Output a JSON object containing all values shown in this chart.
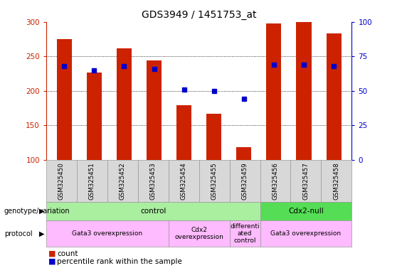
{
  "title": "GDS3949 / 1451753_at",
  "samples": [
    "GSM325450",
    "GSM325451",
    "GSM325452",
    "GSM325453",
    "GSM325454",
    "GSM325455",
    "GSM325459",
    "GSM325456",
    "GSM325457",
    "GSM325458"
  ],
  "count_values": [
    275,
    226,
    262,
    244,
    179,
    167,
    118,
    298,
    300,
    283
  ],
  "percentile_values": [
    68,
    65,
    68,
    66,
    51,
    50,
    44,
    69,
    69,
    68
  ],
  "ylim_left": [
    100,
    300
  ],
  "ylim_right": [
    0,
    100
  ],
  "yticks_left": [
    100,
    150,
    200,
    250,
    300
  ],
  "yticks_right": [
    0,
    25,
    50,
    75,
    100
  ],
  "bar_color": "#cc2200",
  "dot_color": "#0000cc",
  "bar_width": 0.5,
  "genotype_groups": [
    {
      "label": "control",
      "start": 0,
      "end": 6,
      "color": "#aaeea0"
    },
    {
      "label": "Cdx2-null",
      "start": 7,
      "end": 9,
      "color": "#55dd55"
    }
  ],
  "protocol_groups": [
    {
      "label": "Gata3 overexpression",
      "start": 0,
      "end": 3,
      "color": "#ffbbff"
    },
    {
      "label": "Cdx2\noverexpression",
      "start": 4,
      "end": 5,
      "color": "#ffbbff"
    },
    {
      "label": "differenti\nated\ncontrol",
      "start": 6,
      "end": 6,
      "color": "#ffbbff"
    },
    {
      "label": "Gata3 overexpression",
      "start": 7,
      "end": 9,
      "color": "#ffbbff"
    }
  ],
  "legend_count_color": "#cc2200",
  "legend_dot_color": "#0000cc",
  "background_color": "#ffffff",
  "title_fontsize": 10
}
